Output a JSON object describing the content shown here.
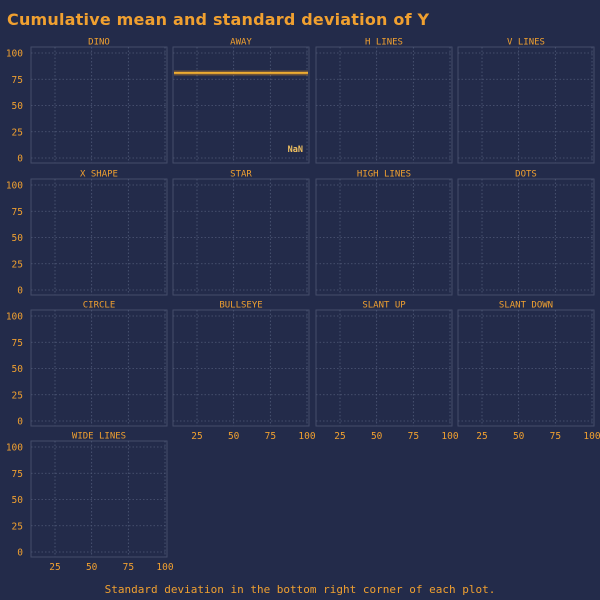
{
  "title": "Cumulative mean and standard deviation of Y",
  "caption": "Standard deviation in the bottom right corner of each plot.",
  "colors": {
    "background": "#232b4a",
    "accent": "#f0a030",
    "line": "#ffb830"
  },
  "chart_data": {
    "type": "line",
    "facets": [
      "DINO",
      "AWAY",
      "H LINES",
      "V LINES",
      "X SHAPE",
      "STAR",
      "HIGH LINES",
      "DOTS",
      "CIRCLE",
      "BULLSEYE",
      "SLANT UP",
      "SLANT DOWN",
      "WIDE LINES"
    ],
    "ylim": [
      0,
      100
    ],
    "yticks": [
      "100",
      "75",
      "50",
      "25",
      "0"
    ],
    "xlim": [
      10,
      100
    ],
    "xticks": [
      "25",
      "50",
      "75",
      "100"
    ],
    "grid": true,
    "series": [
      {
        "facet": "AWAY",
        "mean": 81,
        "sd": "NaN"
      }
    ]
  }
}
